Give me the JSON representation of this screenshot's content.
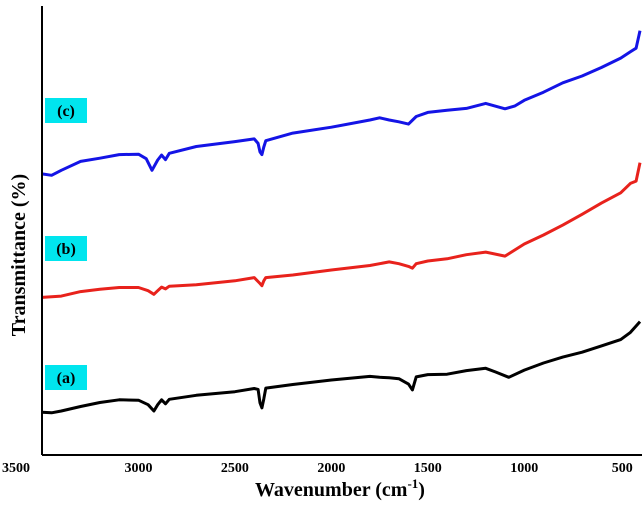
{
  "chart_data": {
    "type": "line",
    "xlabel": "Wavenumber (cm",
    "xlabel_sup": "-1",
    "xlabel_close": ")",
    "ylabel": "Transmittance (%)",
    "xlim": [
      3500,
      400
    ],
    "x_reversed": true,
    "y_ticks_shown": false,
    "ylim": [
      0,
      100
    ],
    "grid": false,
    "legend": "none",
    "tick_labels": [
      "3500",
      "3000",
      "2500",
      "2000",
      "1500",
      "1000",
      "500"
    ],
    "series": [
      {
        "name": "(a)",
        "color": "#000000",
        "label_bg": "#00e5ee",
        "points": [
          [
            3500,
            9.5
          ],
          [
            3450,
            9.4
          ],
          [
            3400,
            9.8
          ],
          [
            3300,
            10.8
          ],
          [
            3200,
            11.7
          ],
          [
            3100,
            12.3
          ],
          [
            3000,
            12.2
          ],
          [
            2950,
            11.2
          ],
          [
            2920,
            9.8
          ],
          [
            2900,
            11.2
          ],
          [
            2880,
            12.3
          ],
          [
            2860,
            11.4
          ],
          [
            2840,
            12.4
          ],
          [
            2700,
            13.3
          ],
          [
            2500,
            14.1
          ],
          [
            2400,
            14.8
          ],
          [
            2380,
            14.6
          ],
          [
            2370,
            11.6
          ],
          [
            2360,
            10.5
          ],
          [
            2350,
            12.5
          ],
          [
            2340,
            14.9
          ],
          [
            2200,
            15.7
          ],
          [
            2000,
            16.7
          ],
          [
            1800,
            17.5
          ],
          [
            1750,
            17.3
          ],
          [
            1700,
            17.2
          ],
          [
            1650,
            17.0
          ],
          [
            1600,
            15.8
          ],
          [
            1580,
            14.5
          ],
          [
            1560,
            17.4
          ],
          [
            1500,
            17.9
          ],
          [
            1400,
            18.0
          ],
          [
            1300,
            18.8
          ],
          [
            1200,
            19.3
          ],
          [
            1150,
            18.5
          ],
          [
            1080,
            17.3
          ],
          [
            1000,
            18.9
          ],
          [
            900,
            20.5
          ],
          [
            800,
            21.8
          ],
          [
            700,
            22.9
          ],
          [
            600,
            24.3
          ],
          [
            500,
            25.7
          ],
          [
            450,
            27.3
          ],
          [
            400,
            29.7
          ]
        ]
      },
      {
        "name": "(b)",
        "color": "#e8221c",
        "label_bg": "#00e5ee",
        "points": [
          [
            3500,
            35.1
          ],
          [
            3400,
            35.4
          ],
          [
            3300,
            36.4
          ],
          [
            3200,
            36.9
          ],
          [
            3100,
            37.3
          ],
          [
            3000,
            37.3
          ],
          [
            2950,
            36.6
          ],
          [
            2920,
            35.8
          ],
          [
            2900,
            36.6
          ],
          [
            2880,
            37.4
          ],
          [
            2860,
            37.0
          ],
          [
            2840,
            37.6
          ],
          [
            2700,
            37.9
          ],
          [
            2500,
            38.8
          ],
          [
            2400,
            39.5
          ],
          [
            2370,
            38.2
          ],
          [
            2360,
            37.7
          ],
          [
            2350,
            38.8
          ],
          [
            2340,
            39.5
          ],
          [
            2200,
            40.1
          ],
          [
            2000,
            41.2
          ],
          [
            1800,
            42.2
          ],
          [
            1700,
            43.0
          ],
          [
            1650,
            42.6
          ],
          [
            1600,
            42.0
          ],
          [
            1580,
            41.6
          ],
          [
            1560,
            42.6
          ],
          [
            1500,
            43.2
          ],
          [
            1400,
            43.7
          ],
          [
            1300,
            44.6
          ],
          [
            1200,
            45.2
          ],
          [
            1100,
            44.3
          ],
          [
            1000,
            47.0
          ],
          [
            900,
            49.0
          ],
          [
            800,
            51.2
          ],
          [
            700,
            53.6
          ],
          [
            600,
            56.1
          ],
          [
            500,
            58.4
          ],
          [
            450,
            60.5
          ],
          [
            420,
            61.0
          ],
          [
            400,
            65.1
          ]
        ]
      },
      {
        "name": "(c)",
        "color": "#1414e6",
        "label_bg": "#00e5ee",
        "points": [
          [
            3500,
            62.6
          ],
          [
            3450,
            62.3
          ],
          [
            3400,
            63.4
          ],
          [
            3300,
            65.4
          ],
          [
            3200,
            66.1
          ],
          [
            3100,
            66.9
          ],
          [
            3000,
            67.0
          ],
          [
            2960,
            66.0
          ],
          [
            2930,
            63.4
          ],
          [
            2900,
            65.7
          ],
          [
            2880,
            66.8
          ],
          [
            2860,
            65.8
          ],
          [
            2840,
            67.2
          ],
          [
            2700,
            68.7
          ],
          [
            2500,
            69.8
          ],
          [
            2400,
            70.4
          ],
          [
            2380,
            69.4
          ],
          [
            2370,
            67.5
          ],
          [
            2360,
            66.9
          ],
          [
            2350,
            68.6
          ],
          [
            2340,
            70.0
          ],
          [
            2200,
            71.7
          ],
          [
            2000,
            73.0
          ],
          [
            1800,
            74.6
          ],
          [
            1750,
            75.1
          ],
          [
            1700,
            74.6
          ],
          [
            1650,
            74.2
          ],
          [
            1600,
            73.7
          ],
          [
            1560,
            75.4
          ],
          [
            1500,
            76.3
          ],
          [
            1400,
            76.8
          ],
          [
            1300,
            77.2
          ],
          [
            1200,
            78.3
          ],
          [
            1100,
            77.1
          ],
          [
            1050,
            77.7
          ],
          [
            1000,
            79.0
          ],
          [
            900,
            80.8
          ],
          [
            800,
            82.9
          ],
          [
            700,
            84.4
          ],
          [
            600,
            86.3
          ],
          [
            500,
            88.4
          ],
          [
            450,
            89.8
          ],
          [
            420,
            90.6
          ],
          [
            400,
            94.5
          ]
        ]
      }
    ]
  }
}
